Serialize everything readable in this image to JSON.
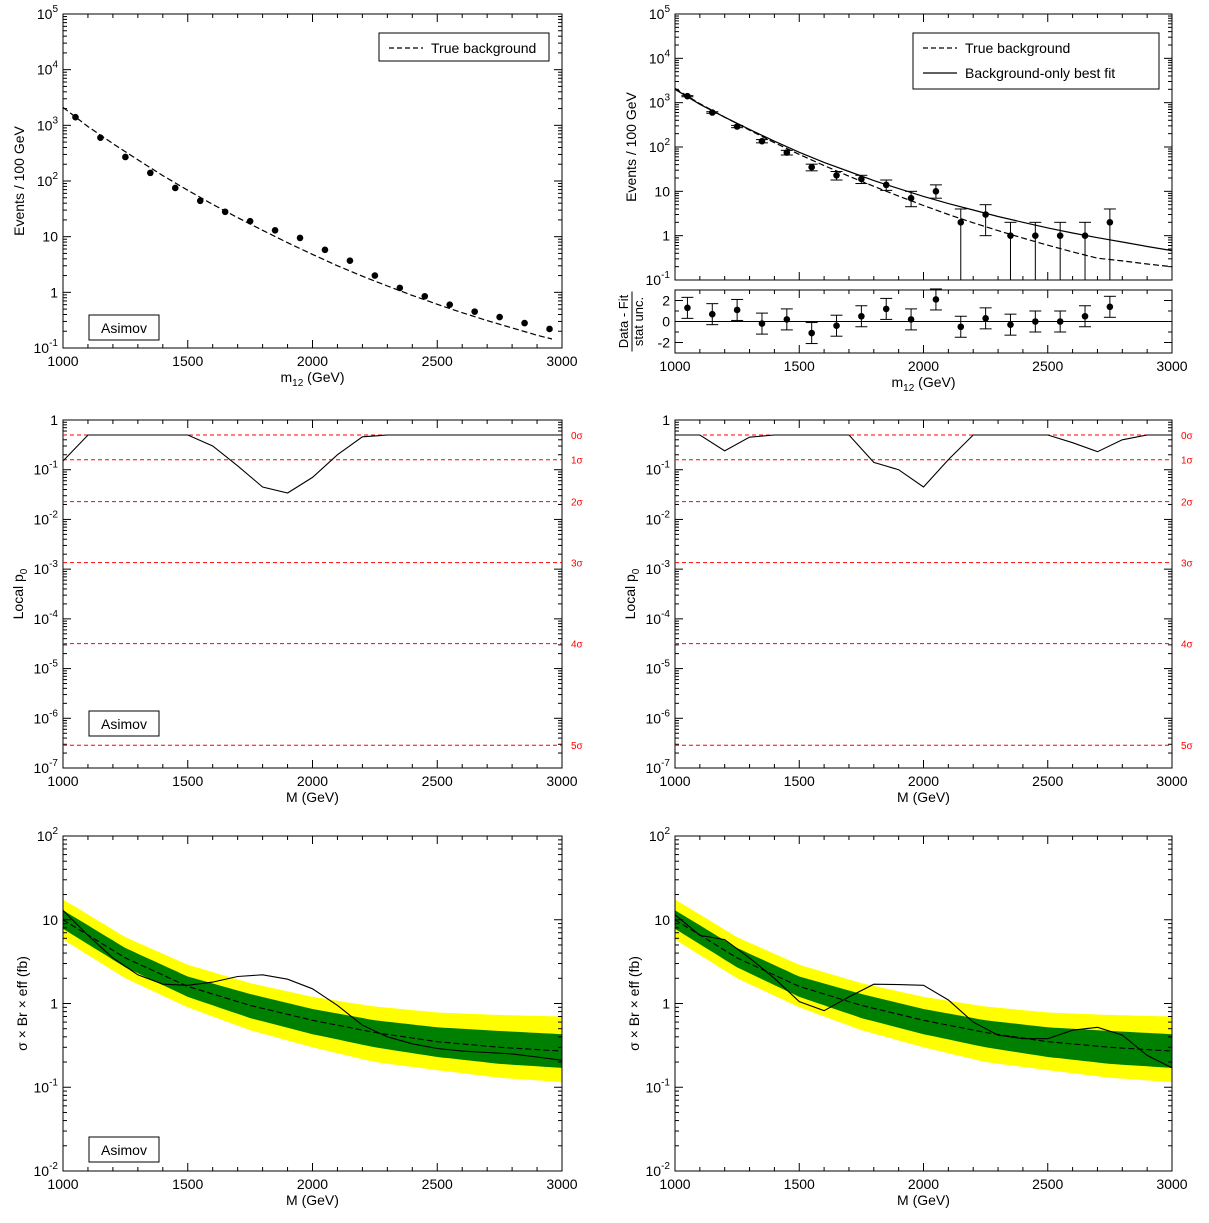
{
  "colors": {
    "yellow": "#ffff00",
    "green": "#008000",
    "sigma_line": "#ff0000",
    "axis": "#000000"
  },
  "chart_data": [
    {
      "id": "top_left",
      "type": "scatter",
      "scale": "log",
      "xlim": [
        1000,
        3000
      ],
      "ylim": [
        0.1,
        100000
      ],
      "xlabel_main": "m",
      "xlabel_sub": "12",
      "xlabel_tail": " (GeV)",
      "ylabel": "Events / 100 GeV",
      "x_ticks": [
        "1000",
        "1500",
        "2000",
        "2500",
        "3000"
      ],
      "y_ticks": [
        {
          "base": "10",
          "exp": "-1"
        },
        {
          "base": "1",
          "exp": ""
        },
        {
          "base": "10",
          "exp": ""
        },
        {
          "base": "10",
          "exp": "2"
        },
        {
          "base": "10",
          "exp": "3"
        },
        {
          "base": "10",
          "exp": "4"
        },
        {
          "base": "10",
          "exp": "5"
        }
      ],
      "legend": [
        {
          "style": "dashed",
          "label": "True background"
        }
      ],
      "legend_position": "top-right",
      "label_box": "Asimov",
      "true_background": {
        "x": [
          1000,
          1100,
          1200,
          1300,
          1400,
          1500,
          1600,
          1700,
          1800,
          1900,
          2000,
          2100,
          2200,
          2300,
          2400,
          2500,
          2600,
          2700,
          2800,
          2900,
          2960
        ],
        "y": [
          2100,
          950,
          470,
          240,
          125,
          68,
          38,
          22,
          13,
          7.8,
          4.8,
          3.0,
          1.95,
          1.3,
          0.88,
          0.61,
          0.43,
          0.31,
          0.23,
          0.17,
          0.145
        ]
      },
      "points": {
        "x": [
          1050,
          1150,
          1250,
          1350,
          1450,
          1550,
          1650,
          1750,
          1850,
          1950,
          2050,
          2150,
          2250,
          2350,
          2450,
          2550,
          2650,
          2750,
          2850,
          2950
        ],
        "y": [
          1400,
          600,
          270,
          140,
          75,
          44,
          28,
          19,
          13,
          9.5,
          5.8,
          3.7,
          2.0,
          1.2,
          0.85,
          0.6,
          0.45,
          0.36,
          0.28,
          0.22
        ]
      }
    },
    {
      "id": "top_right",
      "type": "scatter",
      "scale": "log",
      "xlim": [
        1000,
        3000
      ],
      "ylim": [
        0.1,
        100000
      ],
      "xlabel_main": "m",
      "xlabel_sub": "12",
      "xlabel_tail": " (GeV)",
      "ylabel": "Events / 100 GeV",
      "x_ticks": [
        "1000",
        "1500",
        "2000",
        "2500",
        "3000"
      ],
      "y_ticks": [
        {
          "base": "10",
          "exp": "-1"
        },
        {
          "base": "1",
          "exp": ""
        },
        {
          "base": "10",
          "exp": ""
        },
        {
          "base": "10",
          "exp": "2"
        },
        {
          "base": "10",
          "exp": "3"
        },
        {
          "base": "10",
          "exp": "4"
        },
        {
          "base": "10",
          "exp": "5"
        }
      ],
      "legend": [
        {
          "style": "dashed",
          "label": "True background"
        },
        {
          "style": "solid",
          "label": "Background-only best fit"
        }
      ],
      "legend_position": "top-right",
      "true_background": {
        "x": [
          1000,
          1100,
          1200,
          1300,
          1400,
          1500,
          1600,
          1700,
          1800,
          1900,
          2000,
          2100,
          2200,
          2300,
          2400,
          2500,
          2600,
          2700,
          2800,
          2900,
          3000
        ],
        "y": [
          2100,
          950,
          470,
          240,
          125,
          68,
          38,
          22,
          13,
          7.8,
          4.8,
          3.0,
          1.95,
          1.3,
          0.88,
          0.61,
          0.43,
          0.31,
          0.27,
          0.23,
          0.2
        ]
      },
      "best_fit": {
        "x": [
          1000,
          1100,
          1200,
          1300,
          1400,
          1500,
          1600,
          1700,
          1800,
          1900,
          2000,
          2100,
          2200,
          2300,
          2400,
          2500,
          2600,
          2700,
          2800,
          2900,
          3000
        ],
        "y": [
          2000,
          920,
          470,
          250,
          135,
          76,
          45,
          28,
          17.5,
          11.5,
          7.7,
          5.3,
          3.8,
          2.7,
          2.0,
          1.5,
          1.15,
          0.9,
          0.72,
          0.57,
          0.46
        ]
      },
      "points": {
        "x": [
          1050,
          1150,
          1250,
          1350,
          1450,
          1550,
          1650,
          1750,
          1850,
          1950,
          2050,
          2150,
          2250,
          2350,
          2450,
          2550,
          2650,
          2750
        ],
        "y": [
          1400,
          600,
          290,
          135,
          75,
          35,
          23,
          19,
          14,
          7,
          10,
          2,
          3,
          1,
          1,
          1,
          1,
          2
        ],
        "err_lo": [
          1360,
          576,
          273,
          124,
          66,
          29,
          18,
          15,
          10.5,
          4.5,
          7,
          0.1,
          1,
          0.1,
          0.1,
          0.1,
          0.1,
          0.1
        ],
        "err_hi": [
          1440,
          625,
          307,
          147,
          84,
          41,
          28,
          23,
          18,
          10,
          14,
          4,
          5,
          2,
          2,
          2,
          2,
          4
        ]
      },
      "ratio": {
        "ylabel_top": "Data - Fit",
        "ylabel_bottom": "stat unc.",
        "ylim": [
          -3,
          3
        ],
        "y_ticks": [
          "-2",
          "0",
          "2"
        ],
        "x": [
          1050,
          1150,
          1250,
          1350,
          1450,
          1550,
          1650,
          1750,
          1850,
          1950,
          2050,
          2150,
          2250,
          2350,
          2450,
          2550,
          2650,
          2750
        ],
        "y": [
          1.3,
          0.7,
          1.1,
          -0.2,
          0.2,
          -1.1,
          -0.4,
          0.5,
          1.2,
          0.2,
          2.1,
          -0.5,
          0.3,
          -0.3,
          0.0,
          0.0,
          0.5,
          1.4
        ]
      }
    },
    {
      "id": "mid_left",
      "type": "line",
      "scale": "log",
      "xlim": [
        1000,
        3000
      ],
      "ylim": [
        1e-07,
        1
      ],
      "xlabel": "M (GeV)",
      "ylabel_main": "Local p",
      "ylabel_sub": "0",
      "x_ticks": [
        "1000",
        "1500",
        "2000",
        "2500",
        "3000"
      ],
      "y_ticks": [
        {
          "base": "10",
          "exp": "-7"
        },
        {
          "base": "10",
          "exp": "-6"
        },
        {
          "base": "10",
          "exp": "-5"
        },
        {
          "base": "10",
          "exp": "-4"
        },
        {
          "base": "10",
          "exp": "-3"
        },
        {
          "base": "10",
          "exp": "-2"
        },
        {
          "base": "10",
          "exp": "-1"
        },
        {
          "base": "1",
          "exp": ""
        }
      ],
      "sigma_lines": [
        {
          "p": 0.5,
          "label": "0σ"
        },
        {
          "p": 0.1587,
          "label": "1σ"
        },
        {
          "p": 0.02275,
          "label": "2σ"
        },
        {
          "p": 0.00135,
          "label": "3σ"
        },
        {
          "p": 3.17e-05,
          "label": "4σ"
        },
        {
          "p": 2.87e-07,
          "label": "5σ"
        }
      ],
      "label_box": "Asimov",
      "series": {
        "x": [
          1000,
          1100,
          1200,
          1300,
          1400,
          1500,
          1600,
          1700,
          1800,
          1900,
          2000,
          2100,
          2200,
          2300,
          2500,
          2700,
          3000
        ],
        "y": [
          0.15,
          0.5,
          0.5,
          0.5,
          0.5,
          0.5,
          0.3,
          0.12,
          0.045,
          0.034,
          0.07,
          0.2,
          0.46,
          0.5,
          0.5,
          0.5,
          0.5
        ]
      }
    },
    {
      "id": "mid_right",
      "type": "line",
      "scale": "log",
      "xlim": [
        1000,
        3000
      ],
      "ylim": [
        1e-07,
        1
      ],
      "xlabel": "M (GeV)",
      "ylabel_main": "Local p",
      "ylabel_sub": "0",
      "x_ticks": [
        "1000",
        "1500",
        "2000",
        "2500",
        "3000"
      ],
      "y_ticks": [
        {
          "base": "10",
          "exp": "-7"
        },
        {
          "base": "10",
          "exp": "-6"
        },
        {
          "base": "10",
          "exp": "-5"
        },
        {
          "base": "10",
          "exp": "-4"
        },
        {
          "base": "10",
          "exp": "-3"
        },
        {
          "base": "10",
          "exp": "-2"
        },
        {
          "base": "10",
          "exp": "-1"
        },
        {
          "base": "1",
          "exp": ""
        }
      ],
      "sigma_lines": [
        {
          "p": 0.5,
          "label": "0σ"
        },
        {
          "p": 0.1587,
          "label": "1σ"
        },
        {
          "p": 0.02275,
          "label": "2σ"
        },
        {
          "p": 0.00135,
          "label": "3σ"
        },
        {
          "p": 3.17e-05,
          "label": "4σ"
        },
        {
          "p": 2.87e-07,
          "label": "5σ"
        }
      ],
      "series": {
        "x": [
          1000,
          1100,
          1200,
          1300,
          1400,
          1500,
          1600,
          1700,
          1800,
          1900,
          2000,
          2100,
          2200,
          2300,
          2400,
          2500,
          2600,
          2700,
          2800,
          2900,
          3000
        ],
        "y": [
          0.5,
          0.5,
          0.24,
          0.45,
          0.5,
          0.5,
          0.5,
          0.5,
          0.14,
          0.1,
          0.045,
          0.16,
          0.5,
          0.5,
          0.5,
          0.5,
          0.35,
          0.23,
          0.4,
          0.5,
          0.5
        ]
      }
    },
    {
      "id": "bottom_left",
      "type": "area",
      "scale": "log",
      "xlim": [
        1000,
        3000
      ],
      "ylim": [
        0.01,
        100
      ],
      "xlabel": "M (GeV)",
      "ylabel": "σ × Br × eff (fb)",
      "x_ticks": [
        "1000",
        "1500",
        "2000",
        "2500",
        "3000"
      ],
      "y_ticks": [
        {
          "base": "10",
          "exp": "-2"
        },
        {
          "base": "10",
          "exp": "-1"
        },
        {
          "base": "1",
          "exp": ""
        },
        {
          "base": "10",
          "exp": ""
        },
        {
          "base": "10",
          "exp": "2"
        }
      ],
      "label_box": "Asimov",
      "bands": {
        "x": [
          1000,
          1250,
          1500,
          1750,
          2000,
          2250,
          2500,
          2750,
          3000
        ],
        "median": [
          10,
          3.5,
          1.6,
          0.95,
          0.63,
          0.45,
          0.35,
          0.3,
          0.27
        ],
        "one_lo": [
          7.8,
          2.7,
          1.2,
          0.67,
          0.43,
          0.3,
          0.23,
          0.19,
          0.17
        ],
        "one_hi": [
          13,
          4.6,
          2.1,
          1.3,
          0.86,
          0.63,
          0.52,
          0.47,
          0.43
        ],
        "two_lo": [
          5.8,
          2.0,
          0.9,
          0.48,
          0.3,
          0.2,
          0.16,
          0.13,
          0.115
        ],
        "two_hi": [
          17.5,
          6.2,
          2.9,
          1.75,
          1.2,
          0.92,
          0.78,
          0.73,
          0.7
        ]
      },
      "observed": {
        "x": [
          1000,
          1100,
          1200,
          1300,
          1400,
          1500,
          1600,
          1700,
          1800,
          1900,
          2000,
          2100,
          2200,
          2300,
          2400,
          2500,
          2600,
          2700,
          2800,
          2900,
          3000
        ],
        "y": [
          13,
          6.5,
          3.5,
          2.2,
          1.7,
          1.65,
          1.8,
          2.1,
          2.2,
          1.95,
          1.5,
          0.95,
          0.55,
          0.4,
          0.33,
          0.29,
          0.27,
          0.26,
          0.25,
          0.23,
          0.21
        ]
      }
    },
    {
      "id": "bottom_right",
      "type": "area",
      "scale": "log",
      "xlim": [
        1000,
        3000
      ],
      "ylim": [
        0.01,
        100
      ],
      "xlabel": "M (GeV)",
      "ylabel": "σ × Br × eff (fb)",
      "x_ticks": [
        "1000",
        "1500",
        "2000",
        "2500",
        "3000"
      ],
      "y_ticks": [
        {
          "base": "10",
          "exp": "-2"
        },
        {
          "base": "10",
          "exp": "-1"
        },
        {
          "base": "1",
          "exp": ""
        },
        {
          "base": "10",
          "exp": ""
        },
        {
          "base": "10",
          "exp": "2"
        }
      ],
      "bands": {
        "x": [
          1000,
          1250,
          1500,
          1750,
          2000,
          2250,
          2500,
          2750,
          3000
        ],
        "median": [
          10,
          3.5,
          1.6,
          0.95,
          0.63,
          0.45,
          0.35,
          0.3,
          0.27
        ],
        "one_lo": [
          7.8,
          2.7,
          1.2,
          0.67,
          0.43,
          0.3,
          0.23,
          0.19,
          0.17
        ],
        "one_hi": [
          13,
          4.6,
          2.1,
          1.3,
          0.86,
          0.63,
          0.52,
          0.47,
          0.43
        ],
        "two_lo": [
          5.8,
          2.0,
          0.9,
          0.48,
          0.3,
          0.2,
          0.16,
          0.13,
          0.115
        ],
        "two_hi": [
          17.5,
          6.2,
          2.9,
          1.75,
          1.2,
          0.92,
          0.78,
          0.73,
          0.7
        ]
      },
      "observed": {
        "x": [
          1000,
          1100,
          1200,
          1300,
          1400,
          1500,
          1600,
          1700,
          1800,
          1900,
          2000,
          2100,
          2200,
          2300,
          2400,
          2500,
          2600,
          2700,
          2800,
          2900,
          3000
        ],
        "y": [
          11.5,
          6.5,
          5.8,
          3.5,
          2.0,
          1.05,
          0.82,
          1.2,
          1.7,
          1.68,
          1.65,
          1.1,
          0.6,
          0.42,
          0.38,
          0.38,
          0.48,
          0.52,
          0.42,
          0.24,
          0.17
        ]
      }
    }
  ]
}
